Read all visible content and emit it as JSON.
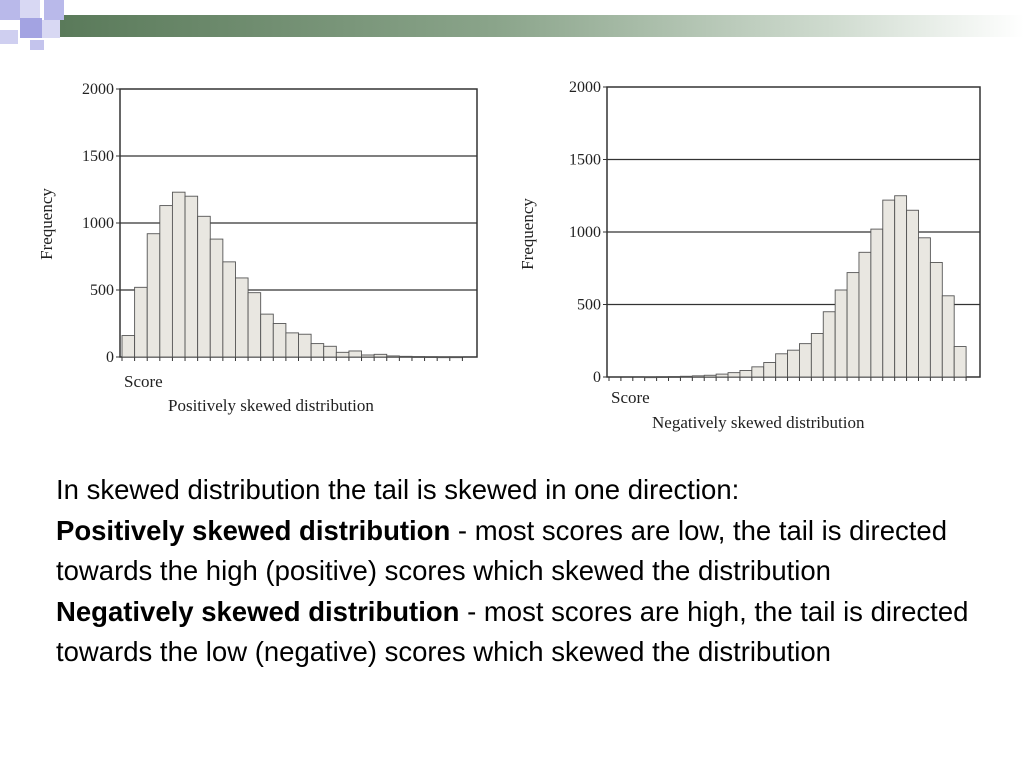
{
  "theme": {
    "accent_dark": "#5e7a5e",
    "accent_light": "#c9d4c9",
    "square_blue": "#b7b7ea",
    "square_light": "#d6d6f2",
    "bar_fill": "#e9e7e1",
    "bar_stroke": "#555555"
  },
  "chart_data": [
    {
      "type": "bar",
      "title": "Positively skewed distribution",
      "xlabel": "Score",
      "ylabel": "Frequency",
      "ylim": [
        0,
        2000
      ],
      "yticks": [
        0,
        500,
        1000,
        1500,
        2000
      ],
      "grid": true,
      "bin_count": 28,
      "values": [
        160,
        520,
        920,
        1130,
        1230,
        1200,
        1050,
        880,
        710,
        590,
        480,
        320,
        250,
        180,
        170,
        100,
        80,
        35,
        45,
        15,
        20,
        8,
        5,
        3,
        2,
        1,
        1,
        0
      ]
    },
    {
      "type": "bar",
      "title": "Negatively skewed distribution",
      "xlabel": "Score",
      "ylabel": "Frequency",
      "ylim": [
        0,
        2000
      ],
      "yticks": [
        0,
        500,
        1000,
        1500,
        2000
      ],
      "grid": true,
      "bin_count": 31,
      "values": [
        0,
        0,
        0,
        1,
        2,
        3,
        5,
        8,
        12,
        20,
        30,
        45,
        70,
        100,
        160,
        185,
        230,
        300,
        450,
        600,
        720,
        860,
        1020,
        1220,
        1250,
        1150,
        960,
        790,
        560,
        210,
        0
      ]
    }
  ],
  "text": {
    "line1": "In skewed distribution the tail is skewed in one direction:",
    "pos_term": "Positively skewed distribution",
    "pos_desc": " - most scores are low, the tail is directed towards the high (positive) scores which skewed the distribution",
    "neg_term": "Negatively skewed distribution",
    "neg_desc": " - most scores are high, the tail is directed towards the low (negative) scores which skewed the distribution"
  }
}
